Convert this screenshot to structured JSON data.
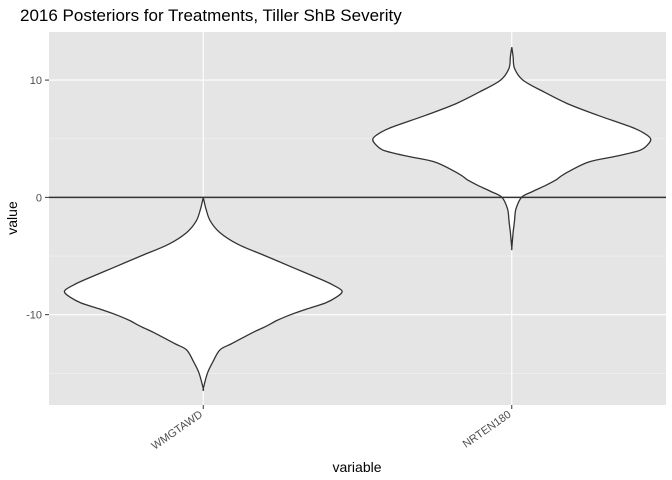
{
  "chart_data": {
    "type": "violin",
    "title": "2016 Posteriors for Treatments, Tiller ShB Severity",
    "xlabel": "variable",
    "ylabel": "value",
    "categories": [
      "WMGTAWD",
      "NRTEN180"
    ],
    "y_ticks": [
      -10,
      0,
      10
    ],
    "y_tick_labels": [
      "-10",
      "0",
      "10"
    ],
    "ylim": [
      -17.7,
      14.1
    ],
    "hline": 0,
    "grid": true,
    "background": "#e5e5e5",
    "line_color": "#333333",
    "violins": [
      {
        "category": "WMGTAWD",
        "density_profile": [
          [
            0.0,
            0.0
          ],
          [
            -1.0,
            0.02
          ],
          [
            -2.0,
            0.05
          ],
          [
            -3.0,
            0.12
          ],
          [
            -4.0,
            0.25
          ],
          [
            -5.0,
            0.45
          ],
          [
            -6.0,
            0.65
          ],
          [
            -7.0,
            0.85
          ],
          [
            -7.5,
            0.94
          ],
          [
            -8.0,
            1.0
          ],
          [
            -8.5,
            0.96
          ],
          [
            -9.0,
            0.88
          ],
          [
            -9.5,
            0.75
          ],
          [
            -10.0,
            0.63
          ],
          [
            -10.5,
            0.53
          ],
          [
            -11.0,
            0.45
          ],
          [
            -11.5,
            0.36
          ],
          [
            -12.0,
            0.28
          ],
          [
            -12.5,
            0.2
          ],
          [
            -13.0,
            0.12
          ],
          [
            -14.0,
            0.07
          ],
          [
            -15.0,
            0.03
          ],
          [
            -16.3,
            0.0
          ]
        ]
      },
      {
        "category": "NRTEN180",
        "density_profile": [
          [
            12.8,
            0.0
          ],
          [
            12.0,
            0.01
          ],
          [
            11.0,
            0.02
          ],
          [
            10.0,
            0.08
          ],
          [
            9.0,
            0.23
          ],
          [
            8.0,
            0.4
          ],
          [
            7.0,
            0.62
          ],
          [
            6.0,
            0.86
          ],
          [
            5.5,
            0.95
          ],
          [
            5.0,
            1.0
          ],
          [
            4.5,
            0.98
          ],
          [
            4.0,
            0.92
          ],
          [
            3.5,
            0.75
          ],
          [
            3.0,
            0.55
          ],
          [
            2.0,
            0.38
          ],
          [
            1.5,
            0.32
          ],
          [
            1.0,
            0.24
          ],
          [
            0.5,
            0.15
          ],
          [
            0.0,
            0.07
          ],
          [
            -1.0,
            0.03
          ],
          [
            -2.0,
            0.02
          ],
          [
            -3.0,
            0.01
          ],
          [
            -4.3,
            0.0
          ]
        ]
      }
    ]
  }
}
